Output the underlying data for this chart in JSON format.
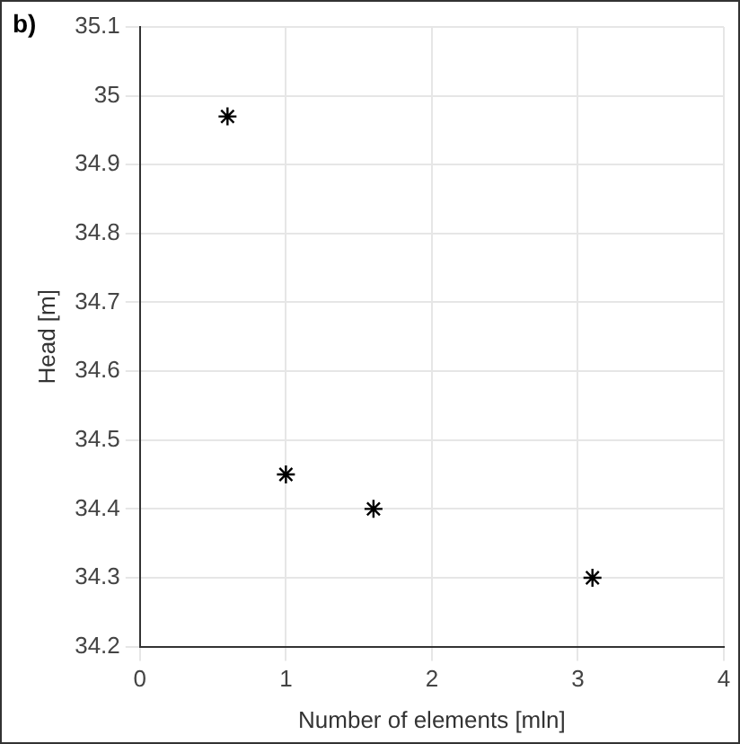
{
  "chart_data": {
    "type": "scatter",
    "xlabel": "Number of elements [mln]",
    "ylabel": "Head [m]",
    "annotations": [
      "b)"
    ],
    "x": [
      0.6,
      1,
      1.6,
      3.1
    ],
    "values": [
      34.97,
      34.45,
      34.4,
      34.3
    ],
    "color": "#000000",
    "marker": "cross",
    "xlim": [
      0,
      4
    ],
    "xticks": [
      0,
      1,
      2,
      3,
      4
    ],
    "ylim": [
      34.2,
      35.1
    ],
    "yticks": [
      34.2,
      34.3,
      34.4,
      34.5,
      34.6,
      34.7,
      34.8,
      34.9,
      35,
      35.1
    ],
    "grid": true
  }
}
